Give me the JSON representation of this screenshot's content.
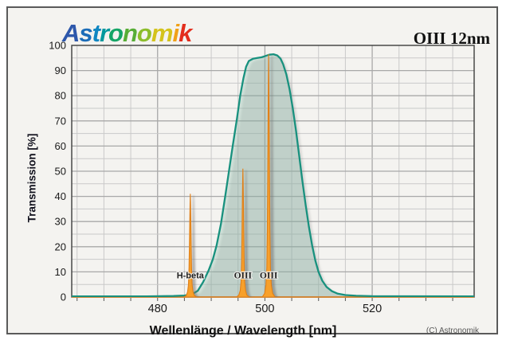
{
  "header": {
    "brand": "Astronomik",
    "brand_letters": [
      {
        "ch": "A",
        "color": "#2d57ab"
      },
      {
        "ch": "s",
        "color": "#1b6cb8"
      },
      {
        "ch": "t",
        "color": "#0f86c2"
      },
      {
        "ch": "r",
        "color": "#00989d"
      },
      {
        "ch": "o",
        "color": "#15a566"
      },
      {
        "ch": "n",
        "color": "#56ad35"
      },
      {
        "ch": "o",
        "color": "#8cbd2b"
      },
      {
        "ch": "m",
        "color": "#d4c31c"
      },
      {
        "ch": "i",
        "color": "#f0a118"
      },
      {
        "ch": "k",
        "color": "#e32d1d"
      }
    ],
    "product": "OIII 12nm"
  },
  "footer": {
    "copyright": "(C) Astronomik"
  },
  "chart_data": {
    "type": "area",
    "title": "OIII 12nm",
    "xlabel": "Wellenlänge / Wavelength [nm]",
    "ylabel": "Transmission [%]",
    "xlim": [
      464,
      539
    ],
    "ylim": [
      0,
      100
    ],
    "x_major_ticks": [
      480,
      500,
      520
    ],
    "x_minor_step_nm": 5,
    "y_major_step": 10,
    "y_minor_step": 5,
    "grid": true,
    "legend": "none",
    "series": [
      {
        "name": "filter-transmission-curve",
        "color": "#18917e",
        "fill": "rgba(150,195,180,0.38)",
        "points": [
          [
            464,
            0.3
          ],
          [
            478,
            0.3
          ],
          [
            483,
            0.4
          ],
          [
            485,
            0.6
          ],
          [
            486.5,
            1.2
          ],
          [
            487.5,
            2.5
          ],
          [
            488.5,
            6
          ],
          [
            489.5,
            10.5
          ],
          [
            490.3,
            15
          ],
          [
            491,
            20.5
          ],
          [
            491.8,
            29
          ],
          [
            492.6,
            40
          ],
          [
            493.3,
            50
          ],
          [
            494,
            60
          ],
          [
            494.8,
            71
          ],
          [
            495.4,
            80
          ],
          [
            496,
            87
          ],
          [
            496.5,
            91.5
          ],
          [
            497,
            93.8
          ],
          [
            497.8,
            94.7
          ],
          [
            498.6,
            95.0
          ],
          [
            499.4,
            95.3
          ],
          [
            500.1,
            95.8
          ],
          [
            500.8,
            96.3
          ],
          [
            501.6,
            96.5
          ],
          [
            502.3,
            96.0
          ],
          [
            502.9,
            94.8
          ],
          [
            503.4,
            92.5
          ],
          [
            504,
            88.5
          ],
          [
            504.6,
            82.5
          ],
          [
            505.2,
            75
          ],
          [
            505.8,
            66
          ],
          [
            506.4,
            56
          ],
          [
            507,
            46
          ],
          [
            507.6,
            36.5
          ],
          [
            508.2,
            28
          ],
          [
            508.8,
            20.5
          ],
          [
            509.4,
            14.5
          ],
          [
            510,
            10
          ],
          [
            510.7,
            6.5
          ],
          [
            511.5,
            4
          ],
          [
            512.5,
            2.3
          ],
          [
            513.5,
            1.4
          ],
          [
            515,
            0.8
          ],
          [
            517,
            0.5
          ],
          [
            520,
            0.35
          ],
          [
            539,
            0.3
          ]
        ]
      }
    ],
    "emission_lines": [
      {
        "label": "H-beta",
        "nm": 486.1,
        "peak_percent": 41,
        "font": "sans"
      },
      {
        "label": "OIII",
        "nm": 495.9,
        "peak_percent": 51,
        "font": "serif"
      },
      {
        "label": "OIII",
        "nm": 500.7,
        "peak_percent": 96.5,
        "font": "serif"
      }
    ],
    "emission_label_y_percent": 7.5,
    "colors": {
      "plot_bg": "#f4f3f0",
      "grid_minor": "#c9c9c9",
      "grid_major": "#a8a8a8",
      "frame": "#3d3d3d",
      "curve": "#18917e",
      "curve_fill": "rgba(150,195,180,0.38)",
      "emission_fill": "#f7a02b",
      "emission_edge": "#e07f18",
      "baseline": "#e07f18",
      "tick": "#555555",
      "text": "#1a1a1a",
      "line_label_text": "#222222"
    }
  }
}
